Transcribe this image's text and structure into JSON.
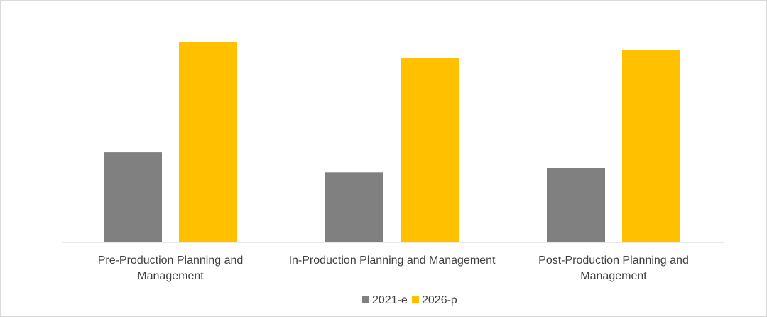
{
  "chart_data": {
    "type": "bar",
    "title": "",
    "xlabel": "",
    "ylabel": "",
    "ylim": [
      0,
      100
    ],
    "grid": false,
    "legend_position": "bottom",
    "categories": [
      [
        "Pre-Production Planning and",
        "Management"
      ],
      [
        "In-Production Planning and Management"
      ],
      [
        "Post-Production Planning and",
        "Management"
      ]
    ],
    "series": [
      {
        "name": "2021-e",
        "color": "#808080",
        "values": [
          45,
          35,
          37
        ]
      },
      {
        "name": "2026-p",
        "color": "#ffc000",
        "values": [
          100,
          92,
          96
        ]
      }
    ]
  }
}
